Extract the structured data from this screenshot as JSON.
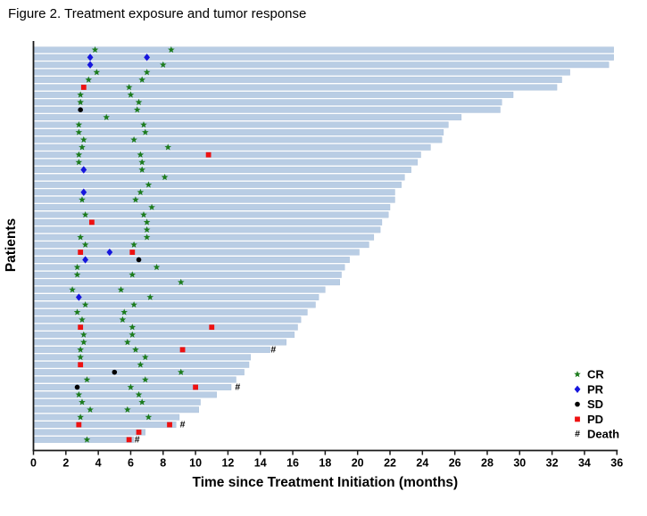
{
  "chart_data": {
    "type": "bar",
    "subtype": "swimmer-plot",
    "title": "Figure 2. Treatment exposure and tumor response",
    "xlabel": "Time since Treatment Initiation (months)",
    "ylabel": "Patients",
    "xlim": [
      0,
      36
    ],
    "xticks": [
      0,
      2,
      4,
      6,
      8,
      10,
      12,
      14,
      16,
      18,
      20,
      22,
      24,
      26,
      28,
      30,
      32,
      34,
      36
    ],
    "grid": false,
    "bar_color": "#b9cde4",
    "bar_edge_color": "#a6bdd8",
    "axis_color": "#1a1a1a",
    "legend_position": "bottom-right",
    "legend": [
      {
        "key": "CR",
        "label": "CR",
        "shape": "star",
        "color": "#1c7c1c"
      },
      {
        "key": "PR",
        "label": "PR",
        "shape": "diamond",
        "color": "#1616dd"
      },
      {
        "key": "SD",
        "label": "SD",
        "shape": "circle",
        "color": "#000000"
      },
      {
        "key": "PD",
        "label": "PD",
        "shape": "square",
        "color": "#ee1111"
      },
      {
        "key": "Death",
        "label": "Death",
        "shape": "hash",
        "color": "#000000"
      }
    ],
    "units": "months",
    "patients": [
      {
        "bar_months": 35.8,
        "events": [
          {
            "type": "CR",
            "month": 3.8
          },
          {
            "type": "CR",
            "month": 8.5
          }
        ]
      },
      {
        "bar_months": 35.8,
        "events": [
          {
            "type": "PR",
            "month": 3.5
          },
          {
            "type": "PR",
            "month": 7.0
          }
        ]
      },
      {
        "bar_months": 35.5,
        "events": [
          {
            "type": "PR",
            "month": 3.5
          },
          {
            "type": "CR",
            "month": 8.0
          }
        ]
      },
      {
        "bar_months": 33.1,
        "events": [
          {
            "type": "CR",
            "month": 3.9
          },
          {
            "type": "CR",
            "month": 7.0
          }
        ]
      },
      {
        "bar_months": 32.6,
        "events": [
          {
            "type": "CR",
            "month": 3.4
          },
          {
            "type": "CR",
            "month": 6.7
          }
        ]
      },
      {
        "bar_months": 32.3,
        "events": [
          {
            "type": "PD",
            "month": 3.1
          },
          {
            "type": "CR",
            "month": 5.9
          }
        ]
      },
      {
        "bar_months": 29.6,
        "events": [
          {
            "type": "CR",
            "month": 2.9
          },
          {
            "type": "CR",
            "month": 6.0
          }
        ]
      },
      {
        "bar_months": 28.9,
        "events": [
          {
            "type": "CR",
            "month": 2.9
          },
          {
            "type": "CR",
            "month": 6.5
          }
        ]
      },
      {
        "bar_months": 28.8,
        "events": [
          {
            "type": "SD",
            "month": 2.9
          },
          {
            "type": "CR",
            "month": 6.4
          }
        ]
      },
      {
        "bar_months": 26.4,
        "events": [
          {
            "type": "CR",
            "month": 4.5
          }
        ]
      },
      {
        "bar_months": 25.6,
        "events": [
          {
            "type": "CR",
            "month": 2.8
          },
          {
            "type": "CR",
            "month": 6.8
          }
        ]
      },
      {
        "bar_months": 25.3,
        "events": [
          {
            "type": "CR",
            "month": 2.8
          },
          {
            "type": "CR",
            "month": 6.9
          }
        ]
      },
      {
        "bar_months": 25.2,
        "events": [
          {
            "type": "CR",
            "month": 3.1
          },
          {
            "type": "CR",
            "month": 6.2
          }
        ]
      },
      {
        "bar_months": 24.5,
        "events": [
          {
            "type": "CR",
            "month": 3.0
          },
          {
            "type": "CR",
            "month": 8.3
          }
        ]
      },
      {
        "bar_months": 23.9,
        "events": [
          {
            "type": "CR",
            "month": 2.8
          },
          {
            "type": "CR",
            "month": 6.6
          },
          {
            "type": "PD",
            "month": 10.8
          }
        ]
      },
      {
        "bar_months": 23.7,
        "events": [
          {
            "type": "CR",
            "month": 2.8
          },
          {
            "type": "CR",
            "month": 6.7
          }
        ]
      },
      {
        "bar_months": 23.3,
        "events": [
          {
            "type": "PR",
            "month": 3.1
          },
          {
            "type": "CR",
            "month": 6.7
          }
        ]
      },
      {
        "bar_months": 22.9,
        "events": [
          {
            "type": "CR",
            "month": 8.1
          }
        ]
      },
      {
        "bar_months": 22.7,
        "events": [
          {
            "type": "CR",
            "month": 7.1
          }
        ]
      },
      {
        "bar_months": 22.3,
        "events": [
          {
            "type": "PR",
            "month": 3.1
          },
          {
            "type": "CR",
            "month": 6.6
          }
        ]
      },
      {
        "bar_months": 22.3,
        "events": [
          {
            "type": "CR",
            "month": 3.0
          },
          {
            "type": "CR",
            "month": 6.3
          }
        ]
      },
      {
        "bar_months": 22.0,
        "events": [
          {
            "type": "CR",
            "month": 7.3
          }
        ]
      },
      {
        "bar_months": 21.9,
        "events": [
          {
            "type": "CR",
            "month": 3.2
          },
          {
            "type": "CR",
            "month": 6.8
          }
        ]
      },
      {
        "bar_months": 21.5,
        "events": [
          {
            "type": "PD",
            "month": 3.6
          },
          {
            "type": "CR",
            "month": 7.0
          }
        ]
      },
      {
        "bar_months": 21.4,
        "events": [
          {
            "type": "CR",
            "month": 7.0
          }
        ]
      },
      {
        "bar_months": 21.0,
        "events": [
          {
            "type": "CR",
            "month": 2.9
          },
          {
            "type": "CR",
            "month": 7.0
          }
        ]
      },
      {
        "bar_months": 20.7,
        "events": [
          {
            "type": "CR",
            "month": 3.2
          },
          {
            "type": "CR",
            "month": 6.2
          }
        ]
      },
      {
        "bar_months": 20.1,
        "events": [
          {
            "type": "PD",
            "month": 2.9
          },
          {
            "type": "PR",
            "month": 4.7
          },
          {
            "type": "PD",
            "month": 6.1
          }
        ]
      },
      {
        "bar_months": 19.5,
        "events": [
          {
            "type": "PR",
            "month": 3.2
          },
          {
            "type": "SD",
            "month": 6.5
          }
        ]
      },
      {
        "bar_months": 19.2,
        "events": [
          {
            "type": "CR",
            "month": 2.7
          },
          {
            "type": "CR",
            "month": 7.6
          }
        ]
      },
      {
        "bar_months": 19.0,
        "events": [
          {
            "type": "CR",
            "month": 2.7
          },
          {
            "type": "CR",
            "month": 6.1
          }
        ]
      },
      {
        "bar_months": 18.9,
        "events": [
          {
            "type": "CR",
            "month": 9.1
          }
        ]
      },
      {
        "bar_months": 18.0,
        "events": [
          {
            "type": "CR",
            "month": 2.4
          },
          {
            "type": "CR",
            "month": 5.4
          }
        ]
      },
      {
        "bar_months": 17.6,
        "events": [
          {
            "type": "PR",
            "month": 2.8
          },
          {
            "type": "CR",
            "month": 7.2
          }
        ]
      },
      {
        "bar_months": 17.4,
        "events": [
          {
            "type": "CR",
            "month": 3.2
          },
          {
            "type": "CR",
            "month": 6.2
          }
        ]
      },
      {
        "bar_months": 16.9,
        "events": [
          {
            "type": "CR",
            "month": 2.7
          },
          {
            "type": "CR",
            "month": 5.6
          }
        ]
      },
      {
        "bar_months": 16.5,
        "events": [
          {
            "type": "CR",
            "month": 3.0
          },
          {
            "type": "CR",
            "month": 5.5
          }
        ]
      },
      {
        "bar_months": 16.3,
        "events": [
          {
            "type": "PD",
            "month": 2.9
          },
          {
            "type": "CR",
            "month": 6.1
          },
          {
            "type": "PD",
            "month": 11.0
          }
        ]
      },
      {
        "bar_months": 16.1,
        "events": [
          {
            "type": "CR",
            "month": 3.1
          },
          {
            "type": "CR",
            "month": 6.1
          }
        ]
      },
      {
        "bar_months": 15.6,
        "events": [
          {
            "type": "CR",
            "month": 3.1
          },
          {
            "type": "CR",
            "month": 5.8
          }
        ]
      },
      {
        "bar_months": 14.6,
        "events": [
          {
            "type": "CR",
            "month": 2.9
          },
          {
            "type": "CR",
            "month": 6.3
          },
          {
            "type": "PD",
            "month": 9.2
          },
          {
            "type": "Death",
            "month": 14.8
          }
        ]
      },
      {
        "bar_months": 13.4,
        "events": [
          {
            "type": "CR",
            "month": 2.9
          },
          {
            "type": "CR",
            "month": 6.9
          }
        ]
      },
      {
        "bar_months": 13.3,
        "events": [
          {
            "type": "PD",
            "month": 2.9
          },
          {
            "type": "CR",
            "month": 6.6
          }
        ]
      },
      {
        "bar_months": 13.0,
        "events": [
          {
            "type": "SD",
            "month": 5.0
          },
          {
            "type": "CR",
            "month": 9.1
          }
        ]
      },
      {
        "bar_months": 12.5,
        "events": [
          {
            "type": "CR",
            "month": 3.3
          },
          {
            "type": "CR",
            "month": 6.9
          }
        ]
      },
      {
        "bar_months": 12.2,
        "events": [
          {
            "type": "SD",
            "month": 2.7
          },
          {
            "type": "CR",
            "month": 6.0
          },
          {
            "type": "PD",
            "month": 10.0
          },
          {
            "type": "Death",
            "month": 12.6
          }
        ]
      },
      {
        "bar_months": 11.3,
        "events": [
          {
            "type": "CR",
            "month": 2.8
          },
          {
            "type": "CR",
            "month": 6.5
          }
        ]
      },
      {
        "bar_months": 10.3,
        "events": [
          {
            "type": "CR",
            "month": 3.0
          },
          {
            "type": "CR",
            "month": 6.7
          }
        ]
      },
      {
        "bar_months": 10.2,
        "events": [
          {
            "type": "CR",
            "month": 3.5
          },
          {
            "type": "CR",
            "month": 5.8
          }
        ]
      },
      {
        "bar_months": 9.0,
        "events": [
          {
            "type": "CR",
            "month": 2.9
          },
          {
            "type": "CR",
            "month": 7.1
          }
        ]
      },
      {
        "bar_months": 8.8,
        "events": [
          {
            "type": "PD",
            "month": 2.8
          },
          {
            "type": "PD",
            "month": 8.4
          },
          {
            "type": "Death",
            "month": 9.2
          }
        ]
      },
      {
        "bar_months": 6.9,
        "events": [
          {
            "type": "PD",
            "month": 6.5
          }
        ]
      },
      {
        "bar_months": 6.2,
        "events": [
          {
            "type": "CR",
            "month": 3.3
          },
          {
            "type": "PD",
            "month": 5.9
          },
          {
            "type": "Death",
            "month": 6.4
          }
        ]
      }
    ]
  }
}
